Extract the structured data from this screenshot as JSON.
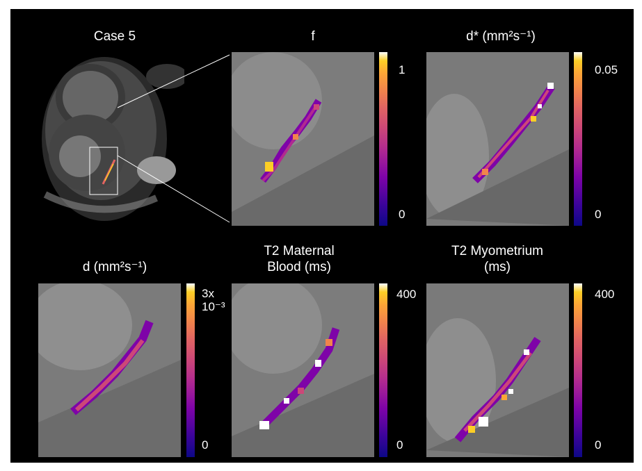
{
  "figure": {
    "case_title": "Case 5",
    "panels": [
      {
        "id": "f",
        "title": "f",
        "cbar_max": "1",
        "cbar_min": "0"
      },
      {
        "id": "dstar",
        "title": "d* (mm²s⁻¹)",
        "cbar_max": "0.05",
        "cbar_min": "0"
      },
      {
        "id": "d",
        "title": "d (mm²s⁻¹)",
        "cbar_max": "3x\n10⁻³",
        "cbar_min": "0"
      },
      {
        "id": "t2mb",
        "title": "T2 Maternal\nBlood (ms)",
        "cbar_max": "400",
        "cbar_min": "0"
      },
      {
        "id": "t2my",
        "title": "T2 Myometrium\n(ms)",
        "cbar_max": "400",
        "cbar_min": "0"
      }
    ],
    "colormap": "plasma",
    "background_color": "#000000"
  }
}
